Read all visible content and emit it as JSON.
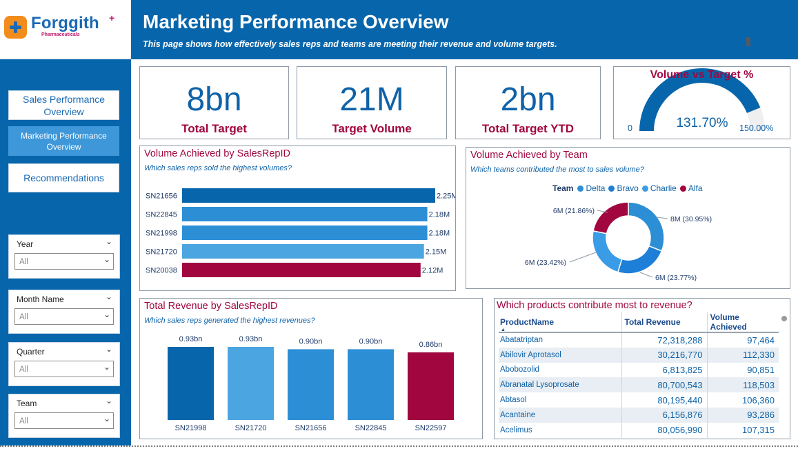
{
  "logo": {
    "name": "Forggith",
    "sub": "Pharmaceuticals",
    "plus": "+"
  },
  "header": {
    "title": "Marketing Performance Overview",
    "subtitle": "This page shows how effectively sales reps and teams are meeting their revenue and volume targets."
  },
  "nav": {
    "sales": "Sales Performance Overview",
    "marketing": "Marketing Performance Overview",
    "recommendations": "Recommendations"
  },
  "slicers": [
    {
      "label": "Year",
      "value": "All"
    },
    {
      "label": "Month Name",
      "value": "All"
    },
    {
      "label": "Quarter",
      "value": "All"
    },
    {
      "label": "Team",
      "value": "All"
    }
  ],
  "kpis": {
    "total_target": {
      "value": "8bn",
      "label": "Total Target"
    },
    "target_volume": {
      "value": "21M",
      "label": "Target Volume"
    },
    "target_ytd": {
      "value": "2bn",
      "label": "Total Target YTD"
    }
  },
  "gauge": {
    "title": "Volume vs Target %",
    "value": 131.7,
    "value_label": "131.70%",
    "min_label": "0",
    "max": 150,
    "max_label": "150.00%"
  },
  "colors": {
    "dark_blue": "#0766ab",
    "mid_blue": "#2c8fd6",
    "light_blue": "#4aa5e0",
    "crimson": "#a1063f"
  },
  "chart_data": [
    {
      "type": "bar",
      "orientation": "horizontal",
      "title": "Volume Achieved by SalesRepID",
      "subtitle": "Which sales reps sold the highest volumes?",
      "categories": [
        "SN21656",
        "SN22845",
        "SN21998",
        "SN21720",
        "SN20038"
      ],
      "values": [
        2.25,
        2.18,
        2.18,
        2.15,
        2.12
      ],
      "labels": [
        "2.25M",
        "2.18M",
        "2.18M",
        "2.15M",
        "2.12M"
      ],
      "bar_colors": [
        "#0766ab",
        "#2c8fd6",
        "#2c8fd6",
        "#4aa5e0",
        "#a1063f"
      ],
      "xlim": [
        0,
        2.25
      ]
    },
    {
      "type": "pie",
      "variant": "donut",
      "title": "Volume Achieved by Team",
      "subtitle": "Which teams contributed the most to sales volume?",
      "legend_title": "Team",
      "legend_position": "top",
      "slices": [
        {
          "name": "Delta",
          "percent": 30.95,
          "label": "8M (30.95%)",
          "color": "#2c8fd6"
        },
        {
          "name": "Bravo",
          "percent": 23.77,
          "label": "6M (23.77%)",
          "color": "#1e7fd8"
        },
        {
          "name": "Charlie",
          "percent": 23.42,
          "label": "6M (23.42%)",
          "color": "#3a9be6"
        },
        {
          "name": "Alfa",
          "percent": 21.86,
          "label": "6M (21.86%)",
          "color": "#a1063f"
        }
      ]
    },
    {
      "type": "bar",
      "orientation": "vertical",
      "title": "Total Revenue by SalesRepID",
      "subtitle": "Which sales reps generated the highest revenues?",
      "categories": [
        "SN21998",
        "SN21720",
        "SN21656",
        "SN22845",
        "SN22597"
      ],
      "values": [
        0.93,
        0.93,
        0.9,
        0.9,
        0.86
      ],
      "labels": [
        "0.93bn",
        "0.93bn",
        "0.90bn",
        "0.90bn",
        "0.86bn"
      ],
      "bar_colors": [
        "#0766ab",
        "#4aa5e0",
        "#2c8fd6",
        "#2c8fd6",
        "#a1063f"
      ],
      "ylim": [
        0,
        0.93
      ]
    }
  ],
  "table": {
    "title": "Which products contribute most to revenue?",
    "columns": [
      "ProductName",
      "Total Revenue",
      "Volume Achieved"
    ],
    "rows": [
      [
        "Abatatriptan",
        "72,318,288",
        "97,464"
      ],
      [
        "Abilovir Aprotasol",
        "30,216,770",
        "112,330"
      ],
      [
        "Abobozolid",
        "6,813,825",
        "90,851"
      ],
      [
        "Abranatal Lysoprosate",
        "80,700,543",
        "118,503"
      ],
      [
        "Abtasol",
        "80,195,440",
        "106,360"
      ],
      [
        "Acantaine",
        "6,156,876",
        "93,286"
      ],
      [
        "Acelimus",
        "80,056,990",
        "107,315"
      ]
    ]
  }
}
